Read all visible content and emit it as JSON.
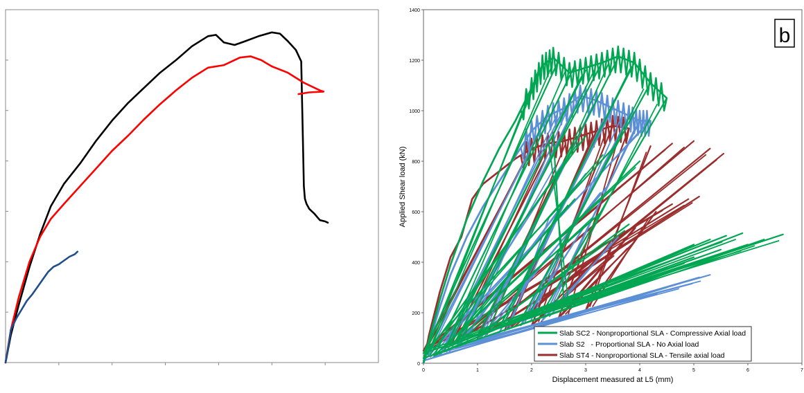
{
  "chart_data": [
    {
      "type": "line",
      "title": "",
      "xlabel": "",
      "ylabel": "",
      "xlim": [
        0,
        7
      ],
      "ylim": [
        0,
        1400
      ],
      "grid": false,
      "legend": "none",
      "series": [
        {
          "color": "#000000",
          "x": [
            0,
            0.1,
            0.25,
            0.45,
            0.65,
            0.85,
            1.1,
            1.4,
            1.7,
            2.0,
            2.3,
            2.6,
            2.9,
            3.2,
            3.5,
            3.8,
            3.95,
            4.1,
            4.3,
            4.5,
            4.75,
            5.0,
            5.15,
            5.3,
            5.45,
            5.55,
            5.58,
            5.6,
            5.62,
            5.65,
            5.7,
            5.8,
            5.9,
            6.0,
            6.05
          ],
          "y": [
            0,
            110,
            230,
            380,
            510,
            620,
            710,
            790,
            880,
            960,
            1030,
            1090,
            1150,
            1200,
            1255,
            1295,
            1300,
            1270,
            1260,
            1275,
            1295,
            1310,
            1305,
            1275,
            1240,
            1195,
            900,
            700,
            650,
            630,
            610,
            590,
            565,
            560,
            555
          ]
        },
        {
          "color": "#ff0000",
          "x": [
            0,
            0.1,
            0.25,
            0.45,
            0.65,
            0.85,
            1.1,
            1.4,
            1.7,
            2.0,
            2.3,
            2.6,
            2.9,
            3.2,
            3.5,
            3.8,
            4.1,
            4.4,
            4.6,
            4.8,
            5.0,
            5.3,
            5.6,
            5.9,
            5.97,
            5.7,
            5.5
          ],
          "y": [
            0,
            130,
            260,
            400,
            500,
            570,
            630,
            700,
            770,
            840,
            900,
            965,
            1025,
            1080,
            1130,
            1170,
            1180,
            1210,
            1215,
            1200,
            1175,
            1150,
            1110,
            1080,
            1075,
            1072,
            1065
          ]
        },
        {
          "color": "#1f4e8c",
          "x": [
            0,
            0.05,
            0.1,
            0.2,
            0.3,
            0.4,
            0.5,
            0.6,
            0.7,
            0.8,
            0.9,
            1.0,
            1.1,
            1.2,
            1.3,
            1.35
          ],
          "y": [
            0,
            60,
            130,
            175,
            210,
            245,
            270,
            300,
            330,
            360,
            380,
            390,
            405,
            420,
            430,
            440
          ]
        }
      ]
    },
    {
      "type": "line",
      "badge": "b",
      "xlabel": "Displacement measured at L5 (mm)",
      "ylabel": "Applied  Shear load (kN)",
      "xlim": [
        0,
        7
      ],
      "ylim": [
        0,
        1400
      ],
      "x_ticks": [
        0,
        1,
        2,
        3,
        4,
        5,
        6,
        7
      ],
      "y_ticks": [
        0,
        200,
        400,
        600,
        800,
        1000,
        1200,
        1400
      ],
      "grid": false,
      "legend": "bottom-right",
      "series": [
        {
          "name": "Slab SC2 - Nonproportional SLA - Compressive Axial load",
          "color": "#00a651",
          "envelope": {
            "x": [
              0,
              0.1,
              0.3,
              0.5,
              0.8,
              1.1,
              1.4,
              1.7,
              2.0,
              2.2,
              2.4,
              2.7,
              3.0,
              3.3,
              3.6,
              3.9,
              4.2,
              4.5
            ],
            "y": [
              0,
              90,
              250,
              390,
              570,
              720,
              850,
              960,
              1090,
              1180,
              1210,
              1150,
              1170,
              1190,
              1215,
              1190,
              1110,
              1050
            ]
          },
          "unloading_tips": [
            [
              2.2,
              1180
            ],
            [
              2.5,
              1200
            ],
            [
              2.8,
              1180
            ],
            [
              3.0,
              1160
            ],
            [
              3.3,
              1190
            ],
            [
              3.6,
              1210
            ],
            [
              3.9,
              1190
            ],
            [
              4.2,
              1110
            ],
            [
              4.5,
              1050
            ],
            [
              2.4,
              900
            ],
            [
              3.0,
              900
            ],
            [
              3.5,
              850
            ],
            [
              4.0,
              800
            ],
            [
              2.8,
              650
            ],
            [
              3.3,
              600
            ],
            [
              3.8,
              550
            ],
            [
              4.5,
              380
            ],
            [
              5.0,
              420
            ],
            [
              5.5,
              450
            ],
            [
              6.0,
              470
            ],
            [
              6.3,
              490
            ],
            [
              6.65,
              510
            ],
            [
              5.0,
              470
            ],
            [
              5.3,
              490
            ],
            [
              5.6,
              505
            ],
            [
              5.9,
              515
            ]
          ],
          "reload_roots": [
            [
              0.0,
              20
            ],
            [
              0.0,
              40
            ],
            [
              0.2,
              30
            ],
            [
              0.4,
              60
            ],
            [
              0.6,
              90
            ],
            [
              1.0,
              110
            ],
            [
              1.4,
              140
            ],
            [
              1.8,
              170
            ],
            [
              2.2,
              200
            ],
            [
              2.6,
              230
            ]
          ]
        },
        {
          "name": "Slab S2   - Proportional SLA - No Axial load",
          "color": "#5b8fd6",
          "envelope": {
            "x": [
              0,
              0.1,
              0.3,
              0.5,
              0.8,
              1.1,
              1.4,
              1.7,
              2.0,
              2.3,
              2.6,
              2.9,
              3.2,
              3.5,
              3.8,
              4.0,
              4.2
            ],
            "y": [
              0,
              80,
              220,
              350,
              500,
              620,
              720,
              820,
              920,
              980,
              1010,
              1060,
              1040,
              1010,
              980,
              960,
              960
            ]
          },
          "unloading_tips": [
            [
              2.3,
              980
            ],
            [
              2.6,
              1010
            ],
            [
              2.9,
              1060
            ],
            [
              3.2,
              1040
            ],
            [
              3.5,
              1010
            ],
            [
              3.8,
              980
            ],
            [
              4.0,
              960
            ],
            [
              4.2,
              960
            ],
            [
              2.6,
              800
            ],
            [
              3.0,
              750
            ],
            [
              3.4,
              700
            ],
            [
              2.5,
              600
            ],
            [
              3.0,
              550
            ],
            [
              3.6,
              500
            ],
            [
              4.5,
              300
            ],
            [
              4.8,
              320
            ],
            [
              5.1,
              340
            ],
            [
              5.3,
              350
            ]
          ],
          "reload_roots": [
            [
              0.0,
              10
            ],
            [
              0.3,
              30
            ],
            [
              0.6,
              60
            ],
            [
              1.0,
              90
            ],
            [
              1.4,
              120
            ],
            [
              1.8,
              150
            ],
            [
              2.2,
              170
            ]
          ]
        },
        {
          "name": "Slab ST4 - Nonproportional SLA - Tensile axial load",
          "color": "#9b2d2d",
          "envelope": {
            "x": [
              0,
              0.1,
              0.3,
              0.5,
              0.7,
              0.9,
              1.1,
              1.4,
              1.7,
              2.0,
              2.3,
              2.6,
              2.9,
              3.2,
              3.5,
              3.8
            ],
            "y": [
              0,
              110,
              280,
              420,
              500,
              650,
              710,
              760,
              810,
              850,
              870,
              880,
              900,
              920,
              940,
              930
            ]
          },
          "unloading_tips": [
            [
              2.0,
              850
            ],
            [
              2.4,
              870
            ],
            [
              2.8,
              890
            ],
            [
              3.2,
              920
            ],
            [
              3.5,
              940
            ],
            [
              3.8,
              930
            ],
            [
              4.2,
              860
            ],
            [
              4.6,
              870
            ],
            [
              5.0,
              880
            ],
            [
              5.3,
              850
            ],
            [
              5.55,
              830
            ],
            [
              3.7,
              520
            ],
            [
              4.0,
              560
            ],
            [
              4.3,
              600
            ],
            [
              4.6,
              630
            ],
            [
              4.9,
              650
            ],
            [
              5.1,
              660
            ],
            [
              3.2,
              420
            ],
            [
              3.6,
              450
            ],
            [
              3.9,
              480
            ]
          ],
          "reload_roots": [
            [
              0.0,
              50
            ],
            [
              0.5,
              70
            ],
            [
              1.0,
              100
            ],
            [
              1.5,
              130
            ],
            [
              2.0,
              150
            ],
            [
              2.5,
              180
            ],
            [
              3.0,
              210
            ]
          ]
        }
      ]
    }
  ]
}
